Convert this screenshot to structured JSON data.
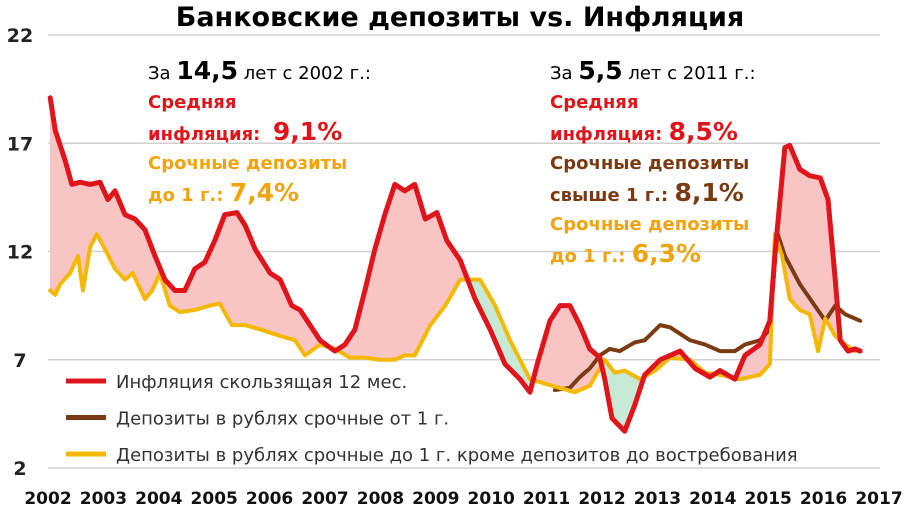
{
  "chart_data": {
    "type": "line",
    "title": "Банковские депозиты vs. Инфляция",
    "xlabel": "",
    "ylabel": "",
    "ylim": [
      2,
      22
    ],
    "xlim": [
      2002,
      2017
    ],
    "yticks": [
      "2",
      "7",
      "12",
      "17",
      "22"
    ],
    "xticks": [
      "2002",
      "2003",
      "2004",
      "2005",
      "2006",
      "2007",
      "2008",
      "2009",
      "2010",
      "2011",
      "2012",
      "2013",
      "2014",
      "2015",
      "2016",
      "2017"
    ],
    "grid": true,
    "legend_position": "bottom-left",
    "series": [
      {
        "name": "Инфляция скользящая 12 мес.",
        "color": "#e0141b",
        "points": [
          [
            2002.04,
            19.1
          ],
          [
            2002.13,
            17.6
          ],
          [
            2002.31,
            16.2
          ],
          [
            2002.43,
            15.1
          ],
          [
            2002.58,
            15.2
          ],
          [
            2002.76,
            15.1
          ],
          [
            2002.94,
            15.2
          ],
          [
            2003.08,
            14.4
          ],
          [
            2003.21,
            14.8
          ],
          [
            2003.39,
            13.7
          ],
          [
            2003.57,
            13.5
          ],
          [
            2003.75,
            13.0
          ],
          [
            2003.93,
            11.8
          ],
          [
            2004.11,
            10.7
          ],
          [
            2004.29,
            10.2
          ],
          [
            2004.47,
            10.2
          ],
          [
            2004.65,
            11.2
          ],
          [
            2004.83,
            11.5
          ],
          [
            2005.01,
            12.5
          ],
          [
            2005.19,
            13.7
          ],
          [
            2005.41,
            13.8
          ],
          [
            2005.56,
            13.2
          ],
          [
            2005.74,
            12.1
          ],
          [
            2006.01,
            11.0
          ],
          [
            2006.19,
            10.7
          ],
          [
            2006.4,
            9.5
          ],
          [
            2006.55,
            9.3
          ],
          [
            2006.73,
            8.6
          ],
          [
            2006.91,
            7.9
          ],
          [
            2007.18,
            7.4
          ],
          [
            2007.36,
            7.7
          ],
          [
            2007.54,
            8.4
          ],
          [
            2007.72,
            10.2
          ],
          [
            2007.9,
            12.1
          ],
          [
            2008.08,
            13.7
          ],
          [
            2008.26,
            15.1
          ],
          [
            2008.44,
            14.8
          ],
          [
            2008.62,
            15.1
          ],
          [
            2008.81,
            13.5
          ],
          [
            2009.02,
            13.8
          ],
          [
            2009.2,
            12.5
          ],
          [
            2009.44,
            11.6
          ],
          [
            2009.71,
            9.8
          ],
          [
            2009.98,
            8.4
          ],
          [
            2010.25,
            6.8
          ],
          [
            2010.52,
            6.1
          ],
          [
            2010.7,
            5.5
          ],
          [
            2010.83,
            6.8
          ],
          [
            2011.06,
            8.8
          ],
          [
            2011.24,
            9.5
          ],
          [
            2011.42,
            9.5
          ],
          [
            2011.6,
            8.6
          ],
          [
            2011.78,
            7.5
          ],
          [
            2011.96,
            7.1
          ],
          [
            2012.05,
            6.1
          ],
          [
            2012.18,
            4.3
          ],
          [
            2012.41,
            3.7
          ],
          [
            2012.59,
            4.9
          ],
          [
            2012.77,
            6.3
          ],
          [
            2013.05,
            7.0
          ],
          [
            2013.41,
            7.4
          ],
          [
            2013.68,
            6.6
          ],
          [
            2013.95,
            6.2
          ],
          [
            2014.13,
            6.5
          ],
          [
            2014.4,
            6.1
          ],
          [
            2014.58,
            7.2
          ],
          [
            2014.85,
            7.7
          ],
          [
            2015.03,
            8.8
          ],
          [
            2015.12,
            11.8
          ],
          [
            2015.3,
            16.8
          ],
          [
            2015.39,
            16.9
          ],
          [
            2015.57,
            15.8
          ],
          [
            2015.75,
            15.5
          ],
          [
            2015.94,
            15.4
          ],
          [
            2016.08,
            14.4
          ],
          [
            2016.21,
            10.7
          ],
          [
            2016.3,
            7.9
          ],
          [
            2016.44,
            7.4
          ],
          [
            2016.57,
            7.5
          ],
          [
            2016.66,
            7.4
          ]
        ]
      },
      {
        "name": "Депозиты в рублях срочные от 1 г.",
        "color": "#7a3b12",
        "points": [
          [
            2011.15,
            5.6
          ],
          [
            2011.42,
            5.7
          ],
          [
            2011.6,
            6.2
          ],
          [
            2011.78,
            6.6
          ],
          [
            2011.96,
            7.2
          ],
          [
            2012.14,
            7.5
          ],
          [
            2012.32,
            7.4
          ],
          [
            2012.59,
            7.8
          ],
          [
            2012.77,
            7.9
          ],
          [
            2013.05,
            8.6
          ],
          [
            2013.23,
            8.5
          ],
          [
            2013.59,
            7.9
          ],
          [
            2013.86,
            7.7
          ],
          [
            2014.13,
            7.4
          ],
          [
            2014.4,
            7.4
          ],
          [
            2014.58,
            7.7
          ],
          [
            2014.85,
            7.9
          ],
          [
            2015.03,
            8.4
          ],
          [
            2015.16,
            12.9
          ],
          [
            2015.3,
            11.8
          ],
          [
            2015.57,
            10.5
          ],
          [
            2015.84,
            9.5
          ],
          [
            2016.03,
            8.8
          ],
          [
            2016.21,
            9.5
          ],
          [
            2016.39,
            9.1
          ],
          [
            2016.66,
            8.8
          ]
        ]
      },
      {
        "name": "Депозиты в рублях срочные до 1 г. кроме депозитов до востребования",
        "color": "#f5b800",
        "points": [
          [
            2002.04,
            10.2
          ],
          [
            2002.13,
            10.0
          ],
          [
            2002.22,
            10.5
          ],
          [
            2002.4,
            11.0
          ],
          [
            2002.54,
            11.8
          ],
          [
            2002.63,
            10.2
          ],
          [
            2002.76,
            12.2
          ],
          [
            2002.88,
            12.8
          ],
          [
            2003.03,
            12.1
          ],
          [
            2003.21,
            11.2
          ],
          [
            2003.39,
            10.7
          ],
          [
            2003.53,
            11.0
          ],
          [
            2003.75,
            9.8
          ],
          [
            2003.88,
            10.2
          ],
          [
            2004.02,
            11.0
          ],
          [
            2004.2,
            9.5
          ],
          [
            2004.38,
            9.2
          ],
          [
            2004.65,
            9.3
          ],
          [
            2004.92,
            9.5
          ],
          [
            2005.1,
            9.6
          ],
          [
            2005.32,
            8.6
          ],
          [
            2005.56,
            8.6
          ],
          [
            2005.83,
            8.4
          ],
          [
            2006.19,
            8.1
          ],
          [
            2006.46,
            7.9
          ],
          [
            2006.64,
            7.2
          ],
          [
            2006.91,
            7.7
          ],
          [
            2007.18,
            7.5
          ],
          [
            2007.45,
            7.1
          ],
          [
            2007.72,
            7.1
          ],
          [
            2007.99,
            7.0
          ],
          [
            2008.26,
            7.0
          ],
          [
            2008.44,
            7.2
          ],
          [
            2008.62,
            7.2
          ],
          [
            2008.9,
            8.6
          ],
          [
            2009.17,
            9.5
          ],
          [
            2009.44,
            10.7
          ],
          [
            2009.8,
            10.7
          ],
          [
            2010.07,
            9.5
          ],
          [
            2010.34,
            7.9
          ],
          [
            2010.7,
            6.1
          ],
          [
            2010.97,
            5.9
          ],
          [
            2011.24,
            5.7
          ],
          [
            2011.51,
            5.5
          ],
          [
            2011.78,
            5.8
          ],
          [
            2012.05,
            7.0
          ],
          [
            2012.23,
            6.4
          ],
          [
            2012.41,
            6.5
          ],
          [
            2012.69,
            6.1
          ],
          [
            2012.96,
            6.5
          ],
          [
            2013.23,
            7.1
          ],
          [
            2013.59,
            7.0
          ],
          [
            2013.86,
            6.4
          ],
          [
            2014.13,
            6.3
          ],
          [
            2014.49,
            6.1
          ],
          [
            2014.85,
            6.3
          ],
          [
            2015.03,
            6.8
          ],
          [
            2015.12,
            12.8
          ],
          [
            2015.25,
            11.8
          ],
          [
            2015.39,
            9.8
          ],
          [
            2015.57,
            9.3
          ],
          [
            2015.75,
            9.1
          ],
          [
            2015.9,
            7.4
          ],
          [
            2016.03,
            8.9
          ],
          [
            2016.21,
            8.1
          ],
          [
            2016.39,
            7.7
          ],
          [
            2016.57,
            7.4
          ]
        ]
      }
    ],
    "annotations": {
      "left": {
        "line1_pre": "За",
        "line1_num": "14,5",
        "line1_post": "лет с 2002 г.:",
        "infl_label1": "Средняя",
        "infl_label2": "инфляция:",
        "infl_value": "9,1%",
        "dep_label1": "Срочные депозиты",
        "dep_label2": "до 1 г.:",
        "dep_value": "7,4%"
      },
      "right": {
        "line1_pre": "За",
        "line1_num": "5,5",
        "line1_post": "лет с 2011 г.:",
        "infl_label1": "Средняя",
        "infl_label2": "инфляция:",
        "infl_value": "8,5%",
        "long_label1": "Срочные депозиты",
        "long_label2": "свыше 1 г.:",
        "long_value": "8,1%",
        "dep_label1": "Срочные депозиты",
        "dep_label2": "до 1 г.:",
        "dep_value": "6,3%"
      }
    },
    "fill_colors": {
      "inflation_above": "#f9c4c4",
      "deposits_above": "#c6ead6"
    }
  }
}
